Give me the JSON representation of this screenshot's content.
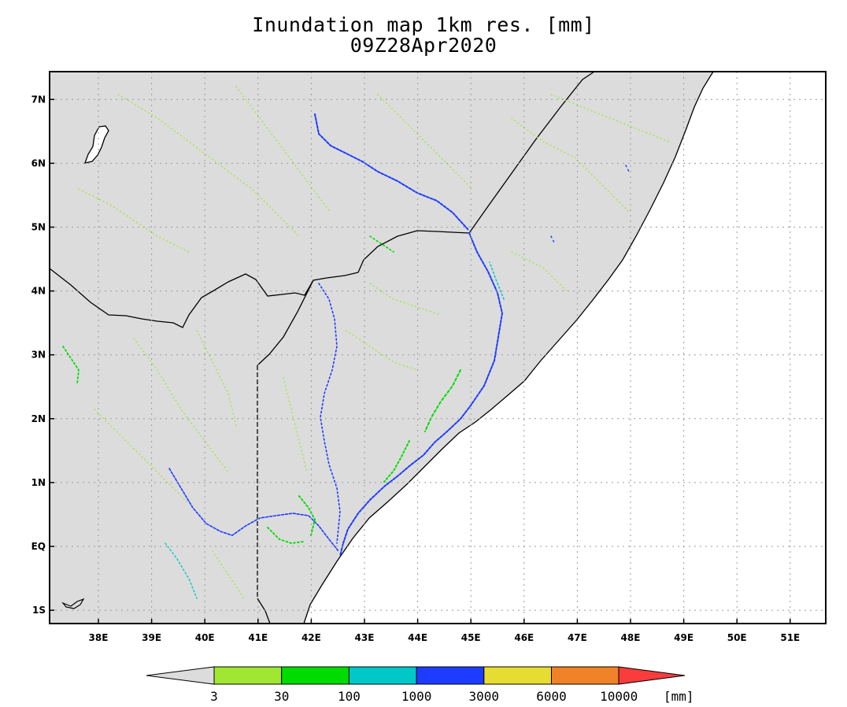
{
  "title": "Inundation map 1km res. [mm]",
  "subtitle": "09Z28Apr2020",
  "map": {
    "lon_range": [
      37,
      52
    ],
    "lat_range": [
      -1.2,
      7.4
    ],
    "lat_ticks": [
      {
        "value": 7,
        "label": "7N"
      },
      {
        "value": 6,
        "label": "6N"
      },
      {
        "value": 5,
        "label": "5N"
      },
      {
        "value": 4,
        "label": "4N"
      },
      {
        "value": 3,
        "label": "3N"
      },
      {
        "value": 2,
        "label": "2N"
      },
      {
        "value": 1,
        "label": "1N"
      },
      {
        "value": 0,
        "label": "EQ"
      },
      {
        "value": -1,
        "label": "1S"
      }
    ],
    "lon_ticks": [
      {
        "value": 38,
        "label": "38E"
      },
      {
        "value": 39,
        "label": "39E"
      },
      {
        "value": 40,
        "label": "40E"
      },
      {
        "value": 41,
        "label": "41E"
      },
      {
        "value": 42,
        "label": "42E"
      },
      {
        "value": 43,
        "label": "43E"
      },
      {
        "value": 44,
        "label": "44E"
      },
      {
        "value": 45,
        "label": "45E"
      },
      {
        "value": 46,
        "label": "46E"
      },
      {
        "value": 47,
        "label": "47E"
      },
      {
        "value": 48,
        "label": "48E"
      },
      {
        "value": 49,
        "label": "49E"
      },
      {
        "value": 50,
        "label": "50E"
      },
      {
        "value": 51,
        "label": "51E"
      }
    ],
    "grid": true,
    "land_color": "#dcdcdc",
    "ocean_color": "#ffffff"
  },
  "colorbar": {
    "unit": "[mm]",
    "labels": [
      "3",
      "30",
      "100",
      "1000",
      "3000",
      "6000",
      "10000"
    ],
    "colors": [
      "#a0e632",
      "#00dc00",
      "#00c8c8",
      "#1e3cff",
      "#e6dc32",
      "#f08228",
      "#fa3c3c"
    ],
    "under_color": "#dcdcdc"
  }
}
